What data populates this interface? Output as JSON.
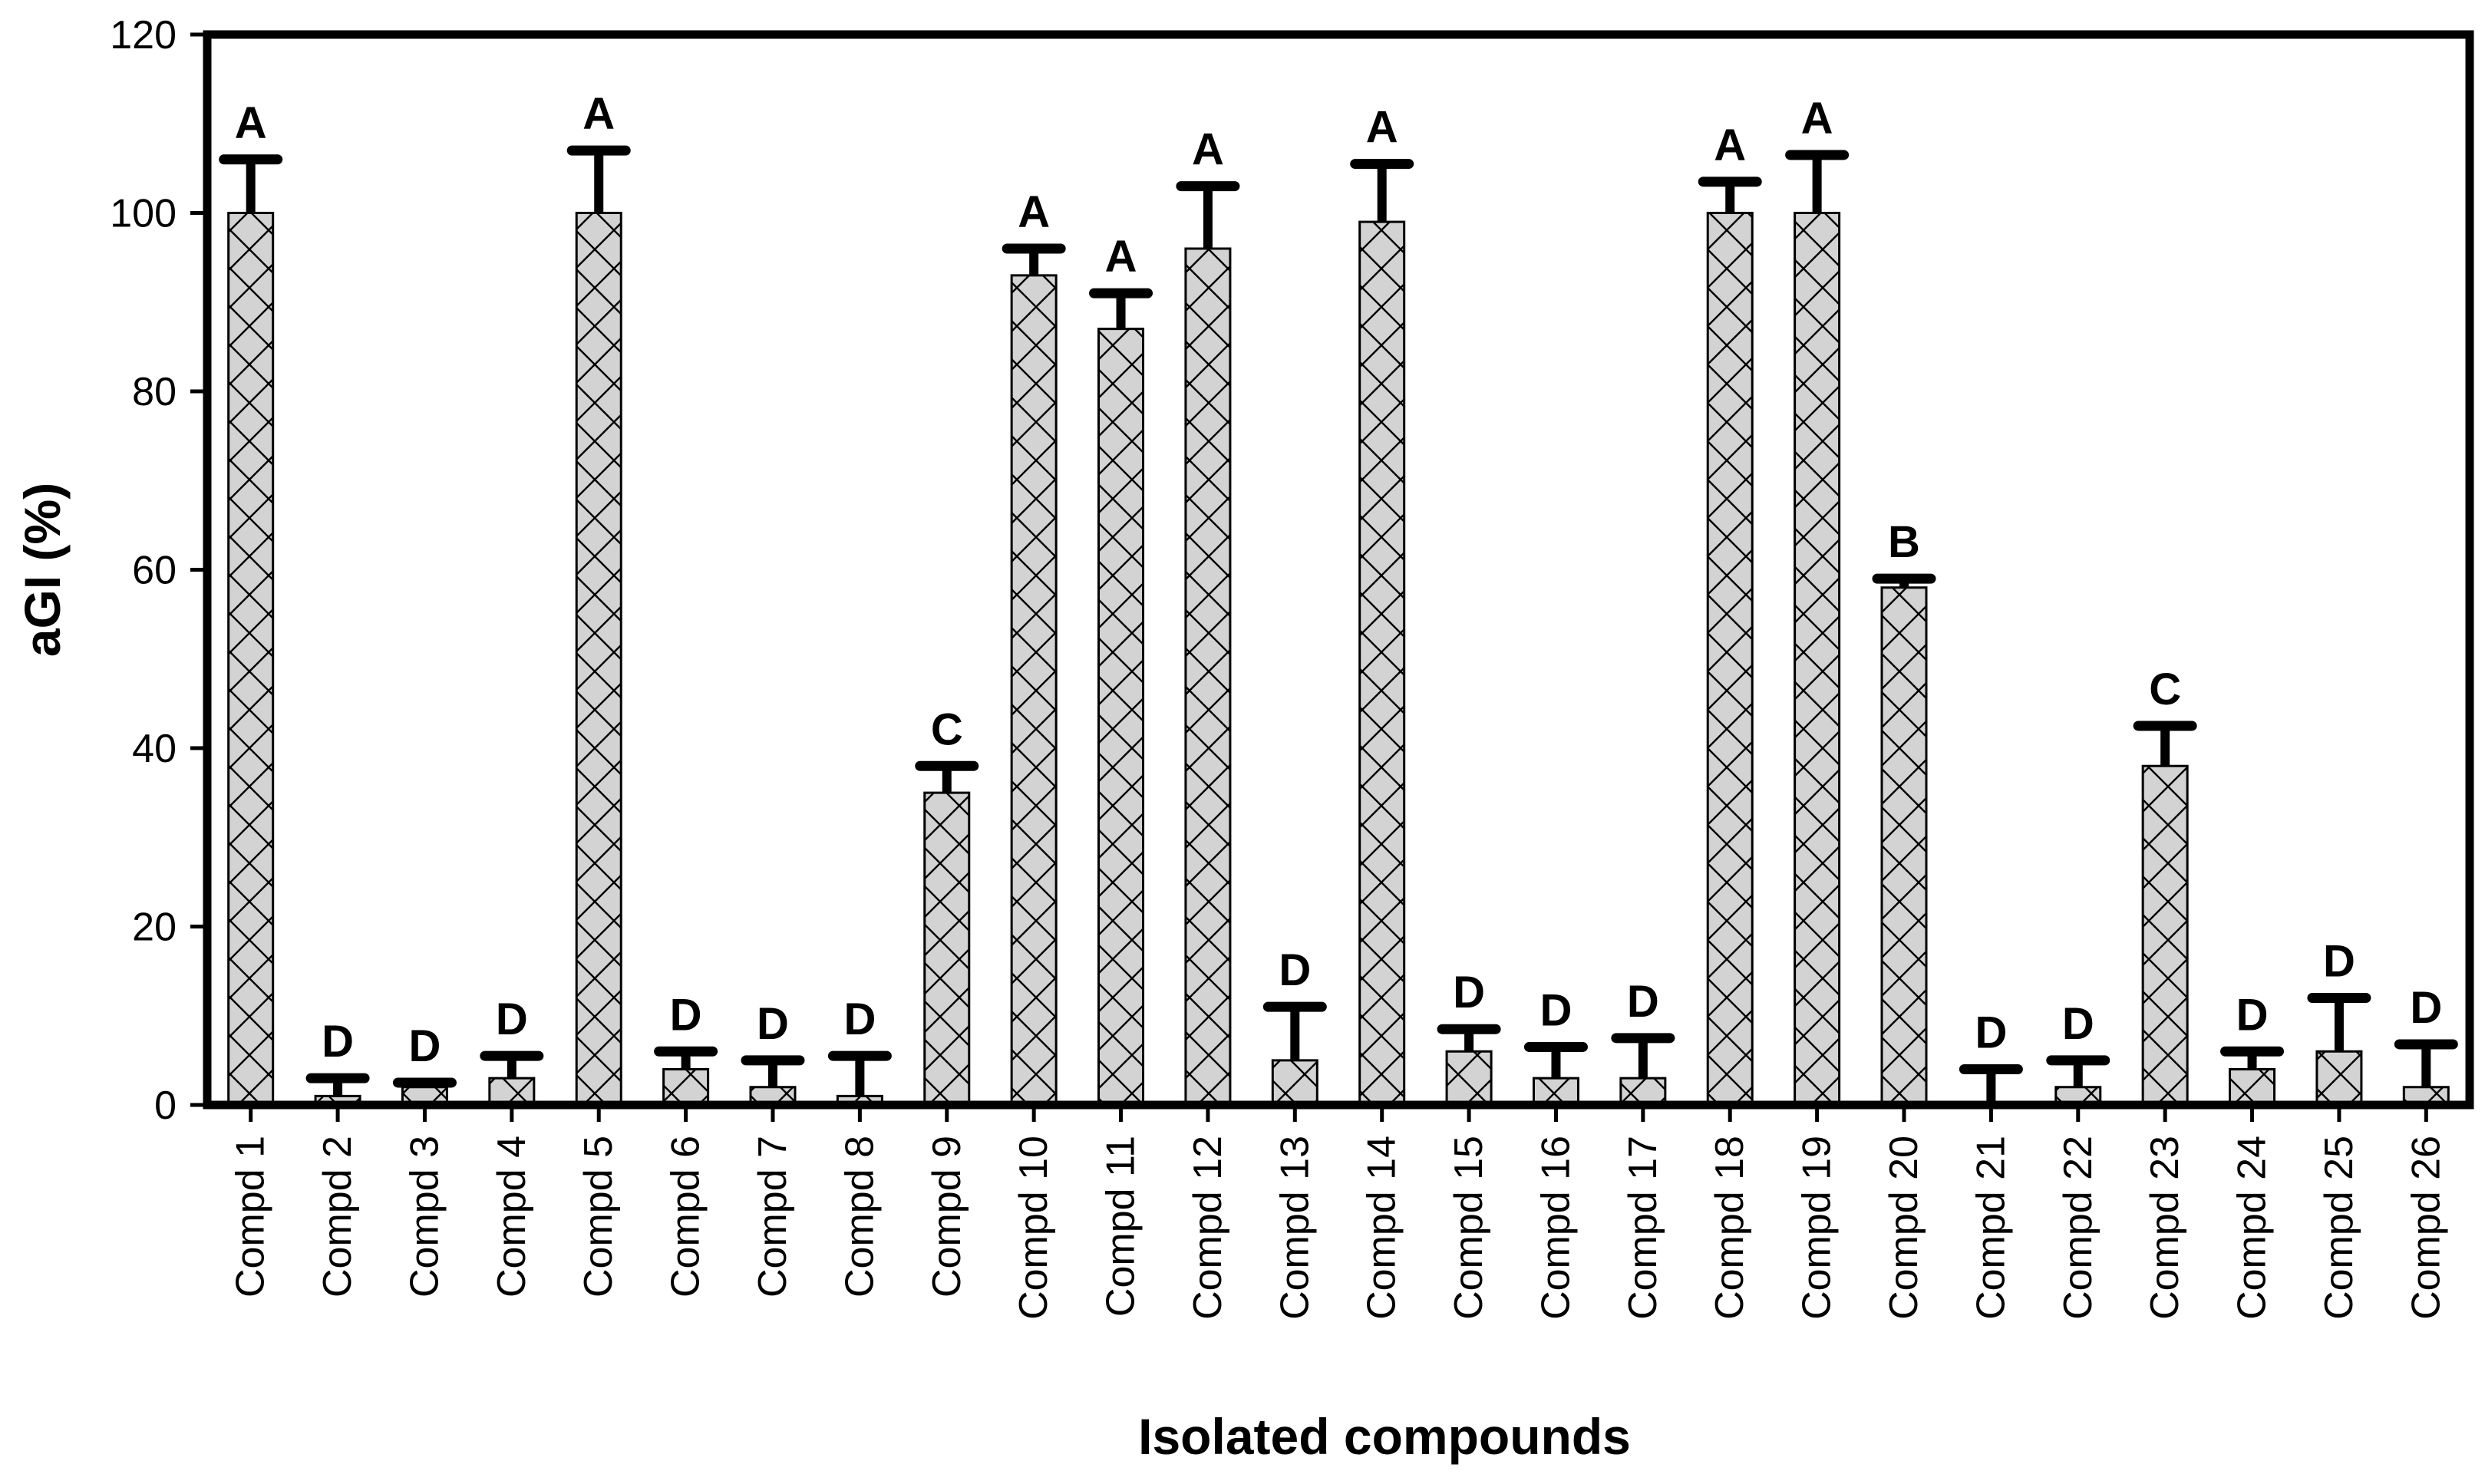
{
  "chart_data": {
    "type": "bar",
    "title": "",
    "xlabel": "Isolated compounds",
    "ylabel": "aGI (%)",
    "ylim": [
      0,
      120
    ],
    "yticks": [
      0,
      20,
      40,
      60,
      80,
      100,
      120
    ],
    "grid": false,
    "legend": "none",
    "colors": {
      "bar_fill": "#d3d3d3",
      "bar_hatch": "#000000",
      "error_bar": "#000000",
      "frame": "#000000"
    },
    "categories": [
      "Compd 1",
      "Compd 2",
      "Compd 3",
      "Compd 4",
      "Compd 5",
      "Compd 6",
      "Compd 7",
      "Compd 8",
      "Compd 9",
      "Compd 10",
      "Compd 11",
      "Compd 12",
      "Compd 13",
      "Compd 14",
      "Compd 15",
      "Compd 16",
      "Compd 17",
      "Compd 18",
      "Compd 19",
      "Compd 20",
      "Compd 21",
      "Compd 22",
      "Compd 23",
      "Compd 24",
      "Compd 25",
      "Compd 26"
    ],
    "values": [
      100,
      1,
      2,
      3,
      100,
      4,
      2,
      1,
      35,
      93,
      87,
      96,
      5,
      99,
      6,
      3,
      3,
      100,
      100,
      58,
      0,
      2,
      38,
      4,
      6,
      2
    ],
    "errors": [
      6,
      2,
      0.5,
      2.5,
      7,
      2,
      3,
      4.5,
      3,
      3,
      4,
      7,
      6,
      6.5,
      2.5,
      3.5,
      4.5,
      3.5,
      6.5,
      1,
      4,
      3,
      4.5,
      2,
      6,
      4.8
    ],
    "significance": [
      "A",
      "D",
      "D",
      "D",
      "A",
      "D",
      "D",
      "D",
      "C",
      "A",
      "A",
      "A",
      "D",
      "A",
      "D",
      "D",
      "D",
      "A",
      "A",
      "B",
      "D",
      "D",
      "C",
      "D",
      "D",
      "D"
    ]
  }
}
